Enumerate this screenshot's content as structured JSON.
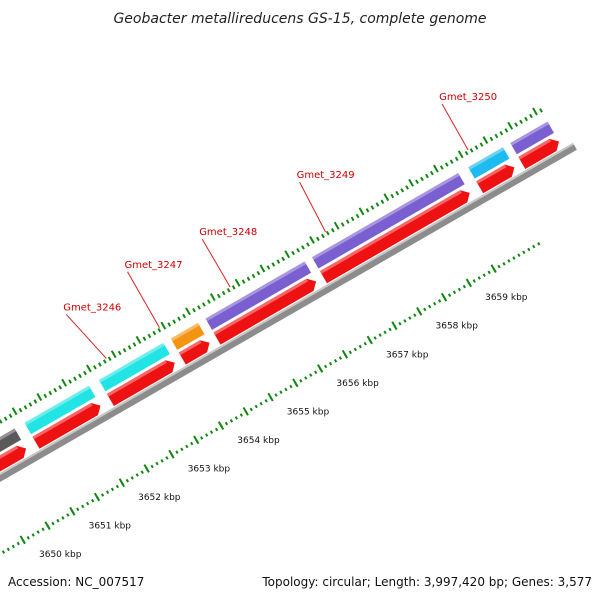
{
  "title": "Geobacter metallireducens GS-15, complete genome",
  "footer": {
    "accession": "Accession: NC_007517",
    "summary": "Topology: circular; Length: 3,997,420 bp; Genes: 3,577"
  },
  "colors": {
    "backbone": "#8c8c8c",
    "cds": "#ee1111",
    "gene_label": "#cc0000",
    "tick": "#118811",
    "leader": "#dd2222"
  },
  "ticks": [
    {
      "label": "3650 kbp",
      "kbp": 3650
    },
    {
      "label": "3651 kbp",
      "kbp": 3651
    },
    {
      "label": "3652 kbp",
      "kbp": 3652
    },
    {
      "label": "3653 kbp",
      "kbp": 3653
    },
    {
      "label": "3654 kbp",
      "kbp": 3654
    },
    {
      "label": "3655 kbp",
      "kbp": 3655
    },
    {
      "label": "3656 kbp",
      "kbp": 3656
    },
    {
      "label": "3657 kbp",
      "kbp": 3657
    },
    {
      "label": "3658 kbp",
      "kbp": 3658
    },
    {
      "label": "3659 kbp",
      "kbp": 3659
    }
  ],
  "genes": [
    {
      "label": "",
      "start": 3649.9,
      "end": 3650.85,
      "color": "#5a5a5a"
    },
    {
      "label": "",
      "start": 3651.05,
      "end": 3652.35,
      "color": "#22e4e4"
    },
    {
      "label": "Gmet_3246",
      "start": 3652.55,
      "end": 3653.85,
      "color": "#22e4e4"
    },
    {
      "label": "Gmet_3247",
      "start": 3654.0,
      "end": 3654.55,
      "color": "#f39412"
    },
    {
      "label": "Gmet_3248",
      "start": 3654.7,
      "end": 3656.7,
      "color": "#7a5fd0"
    },
    {
      "label": "Gmet_3249",
      "start": 3656.85,
      "end": 3659.8,
      "color": "#7a5fd0"
    },
    {
      "label": "Gmet_3250",
      "start": 3660.0,
      "end": 3660.7,
      "color": "#1ebbee"
    },
    {
      "label": "",
      "start": 3660.85,
      "end": 3661.6,
      "color": "#7a5fd0"
    }
  ]
}
